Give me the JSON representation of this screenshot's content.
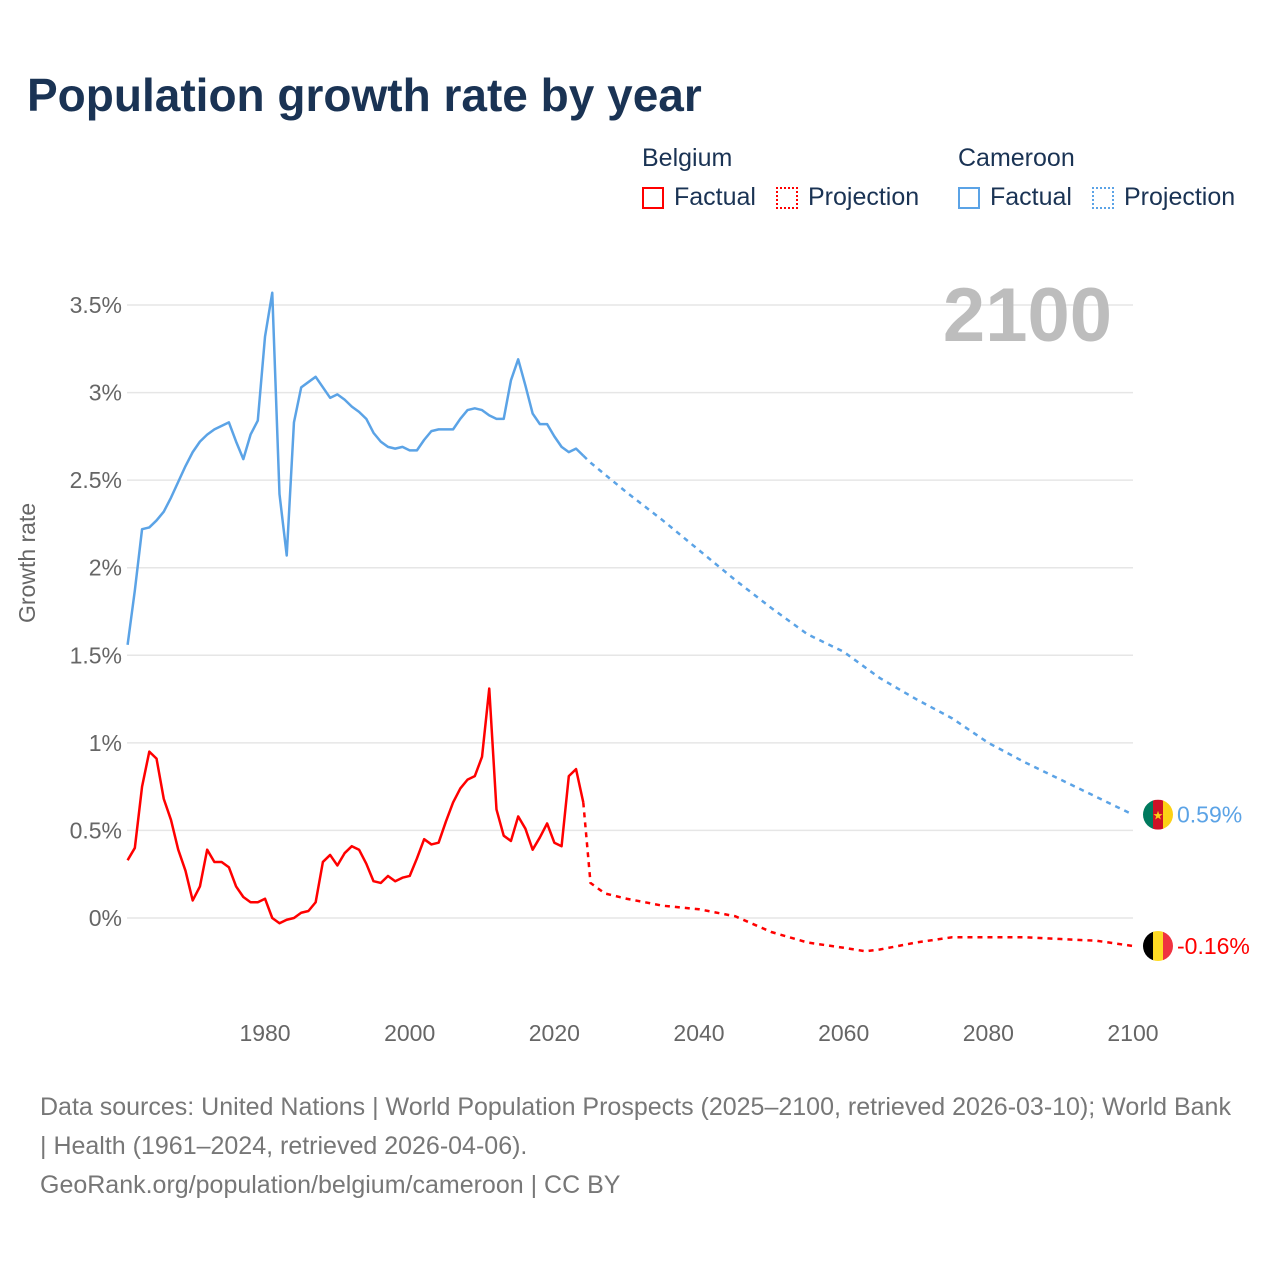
{
  "title": "Population growth rate by year",
  "current_year": "2100",
  "legend": {
    "belgium": {
      "name": "Belgium",
      "factual": "Factual",
      "projection": "Projection"
    },
    "cameroon": {
      "name": "Cameroon",
      "factual": "Factual",
      "projection": "Projection"
    }
  },
  "footer": {
    "sources": "Data sources: United Nations | World Population Prospects (2025–2100, retrieved 2026-03-10); World Bank | Health (1961–2024, retrieved 2026-04-06).",
    "credit": "GeoRank.org/population/belgium/cameroon | CC BY"
  },
  "chart_data": {
    "type": "line",
    "title": "Population growth rate by year",
    "xlabel": "",
    "ylabel": "Growth rate",
    "xlim": [
      1961,
      2100
    ],
    "ylim": [
      -0.5,
      3.6
    ],
    "x_ticks": [
      1980,
      2000,
      2020,
      2040,
      2060,
      2080,
      2100
    ],
    "y_ticks": [
      0,
      0.5,
      1,
      1.5,
      2,
      2.5,
      3,
      3.5
    ],
    "y_tick_labels": [
      "0%",
      "0.5%",
      "1%",
      "1.5%",
      "2%",
      "2.5%",
      "3%",
      "3.5%"
    ],
    "grid": true,
    "legend_position": "top-right",
    "series": [
      {
        "name": "Cameroon",
        "color": "#5ba3e6",
        "end_label": "0.59%",
        "factual": {
          "start": 1961,
          "values": [
            1.56,
            1.87,
            2.22,
            2.23,
            2.27,
            2.32,
            2.4,
            2.49,
            2.58,
            2.66,
            2.72,
            2.76,
            2.79,
            2.81,
            2.83,
            2.72,
            2.62,
            2.76,
            2.84,
            3.32,
            3.57,
            2.42,
            2.07,
            2.83,
            3.03,
            3.06,
            3.09,
            3.03,
            2.97,
            2.99,
            2.96,
            2.92,
            2.89,
            2.85,
            2.77,
            2.72,
            2.69,
            2.68,
            2.69,
            2.67,
            2.67,
            2.73,
            2.78,
            2.79,
            2.79,
            2.79,
            2.85,
            2.9,
            2.91,
            2.9,
            2.87,
            2.85,
            2.85,
            3.07,
            3.19,
            3.04,
            2.88,
            2.82,
            2.82,
            2.75,
            2.69,
            2.66,
            2.68,
            2.64
          ]
        },
        "projection": {
          "x": [
            2024,
            2025,
            2030,
            2035,
            2040,
            2045,
            2050,
            2055,
            2060,
            2065,
            2070,
            2075,
            2080,
            2085,
            2090,
            2095,
            2100
          ],
          "values": [
            2.64,
            2.6,
            2.43,
            2.27,
            2.1,
            1.93,
            1.77,
            1.62,
            1.52,
            1.37,
            1.25,
            1.14,
            1.0,
            0.89,
            0.79,
            0.69,
            0.59
          ]
        }
      },
      {
        "name": "Belgium",
        "color": "#ff0000",
        "end_label": "-0.16%",
        "factual": {
          "start": 1961,
          "values": [
            0.33,
            0.4,
            0.75,
            0.95,
            0.91,
            0.68,
            0.56,
            0.39,
            0.27,
            0.1,
            0.18,
            0.39,
            0.32,
            0.32,
            0.29,
            0.18,
            0.12,
            0.09,
            0.09,
            0.11,
            0.0,
            -0.03,
            -0.01,
            0.0,
            0.03,
            0.04,
            0.09,
            0.32,
            0.36,
            0.3,
            0.37,
            0.41,
            0.39,
            0.31,
            0.21,
            0.2,
            0.24,
            0.21,
            0.23,
            0.24,
            0.34,
            0.45,
            0.42,
            0.43,
            0.55,
            0.66,
            0.74,
            0.79,
            0.81,
            0.92,
            1.31,
            0.62,
            0.47,
            0.44,
            0.58,
            0.51,
            0.39,
            0.46,
            0.54,
            0.43,
            0.41,
            0.81,
            0.85,
            0.66
          ]
        },
        "projection": {
          "x": [
            2024,
            2025,
            2027,
            2030,
            2035,
            2040,
            2045,
            2050,
            2055,
            2060,
            2063,
            2065,
            2070,
            2075,
            2080,
            2085,
            2090,
            2095,
            2100
          ],
          "values": [
            0.66,
            0.2,
            0.14,
            0.11,
            0.07,
            0.05,
            0.01,
            -0.08,
            -0.14,
            -0.17,
            -0.19,
            -0.18,
            -0.14,
            -0.11,
            -0.11,
            -0.11,
            -0.12,
            -0.13,
            -0.16
          ]
        }
      }
    ]
  }
}
